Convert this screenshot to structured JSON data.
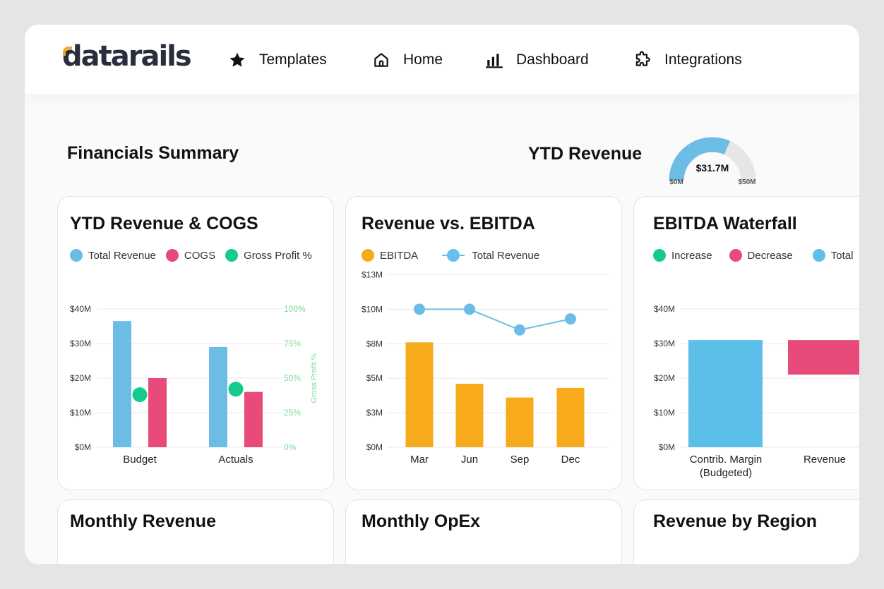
{
  "nav": {
    "logo": "datarails",
    "items": [
      {
        "label": "Templates",
        "icon": "star-icon"
      },
      {
        "label": "Home",
        "icon": "home-icon"
      },
      {
        "label": "Dashboard",
        "icon": "bar-chart-icon"
      },
      {
        "label": "Integrations",
        "icon": "puzzle-icon"
      }
    ]
  },
  "summary": {
    "title": "Financials Summary",
    "ytd_label": "YTD Revenue",
    "gauge": {
      "value_label": "$31.7M",
      "min_label": "$0M",
      "max_label": "$50M",
      "value": 31.7,
      "min": 0,
      "max": 50
    }
  },
  "colors": {
    "revenue": "#6cbde6",
    "cogs": "#e84a7a",
    "gross_profit": "#14cc88",
    "ebitda": "#f6aa1c",
    "increase": "#14cc88",
    "decrease": "#e84a7a",
    "total": "#5bbfe9",
    "gauge_track": "#e6e6e6"
  },
  "cards": {
    "ytd_rev_cogs": {
      "title": "YTD Revenue & COGS",
      "legend": [
        "Total Revenue",
        "COGS",
        "Gross Profit %"
      ]
    },
    "rev_vs_ebitda": {
      "title": "Revenue vs. EBITDA",
      "legend": [
        "EBITDA",
        "Total Revenue"
      ]
    },
    "ebitda_waterfall": {
      "title": "EBITDA Waterfall",
      "legend": [
        "Increase",
        "Decrease",
        "Total"
      ]
    },
    "monthly_revenue": {
      "title": "Monthly Revenue"
    },
    "monthly_opex": {
      "title": "Monthly OpEx"
    },
    "revenue_by_region": {
      "title": "Revenue by Region"
    }
  },
  "chart_data": [
    {
      "type": "bar",
      "title": "YTD Revenue & COGS",
      "categories": [
        "Budget",
        "Actuals"
      ],
      "series": [
        {
          "name": "Total Revenue",
          "values": [
            36.5,
            29
          ]
        },
        {
          "name": "COGS",
          "values": [
            20,
            16
          ]
        },
        {
          "name": "Gross Profit %",
          "values": [
            38,
            42
          ]
        }
      ],
      "y_ticks": [
        "$0M",
        "$10M",
        "$20M",
        "$30M",
        "$40M"
      ],
      "y2_ticks": [
        "0%",
        "25%",
        "50%",
        "75%",
        "100%"
      ],
      "ylim": [
        0,
        40
      ],
      "y2lim": [
        0,
        100
      ],
      "y2label": "Gross Profit %"
    },
    {
      "type": "bar",
      "title": "Revenue vs. EBITDA",
      "categories": [
        "Mar",
        "Jun",
        "Sep",
        "Dec"
      ],
      "series": [
        {
          "name": "EBITDA",
          "values": [
            7.6,
            4.6,
            3.6,
            4.3
          ]
        },
        {
          "name": "Total Revenue",
          "values": [
            10,
            10,
            8.5,
            9.3
          ]
        }
      ],
      "y_ticks": [
        "$0M",
        "$3M",
        "$5M",
        "$8M",
        "$10M",
        "$13M"
      ],
      "ylim": [
        0,
        12.5
      ]
    },
    {
      "type": "bar",
      "title": "EBITDA Waterfall",
      "categories": [
        "Contrib. Margin (Budgeted)",
        "Revenue"
      ],
      "bars": [
        {
          "category": "Contrib. Margin (Budgeted)",
          "kind": "Total",
          "start": 0,
          "end": 31
        },
        {
          "category": "Revenue",
          "kind": "Decrease",
          "start": 31,
          "end": 21
        }
      ],
      "y_ticks": [
        "$0M",
        "$10M",
        "$20M",
        "$30M",
        "$40M"
      ],
      "ylim": [
        0,
        40
      ]
    }
  ]
}
